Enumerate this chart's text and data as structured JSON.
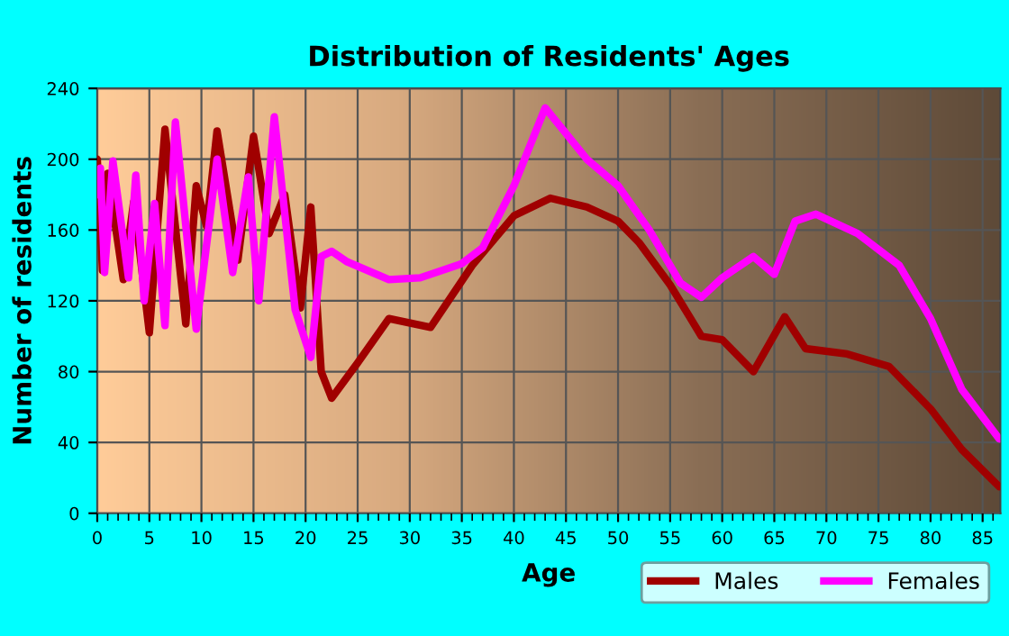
{
  "chart_data": {
    "type": "line",
    "title": "Distribution of Residents' Ages",
    "xlabel": "Age",
    "ylabel": "Number of residents",
    "xlim": [
      0,
      86.7
    ],
    "xticks": [
      0,
      5,
      10,
      15,
      20,
      25,
      30,
      35,
      40,
      45,
      50,
      55,
      60,
      65,
      70,
      75,
      80,
      85
    ],
    "ylim": [
      0,
      240
    ],
    "yticks": [
      0,
      40,
      80,
      120,
      160,
      200,
      240
    ],
    "grid": true,
    "legend": "bottom",
    "series": [
      {
        "name": "Males",
        "color": "#a00000",
        "x": [
          0,
          0.5,
          1,
          2.5,
          3.5,
          5,
          6.5,
          8.5,
          9.5,
          10.5,
          11.5,
          13.5,
          15,
          16.5,
          18,
          19.5,
          20.5,
          21.5,
          22.5,
          25,
          28,
          32,
          36,
          40,
          43.5,
          47,
          50,
          52,
          55,
          58,
          60,
          63,
          66,
          68,
          72,
          76,
          80,
          83,
          86.6
        ],
        "values": [
          200,
          137,
          192,
          132,
          176,
          102,
          217,
          107,
          185,
          162,
          216,
          143,
          213,
          158,
          180,
          116,
          173,
          80,
          65,
          85,
          110,
          105,
          140,
          168,
          178,
          173,
          165,
          153,
          129,
          100,
          98,
          80,
          111,
          93,
          90,
          83,
          59,
          36,
          15
        ]
      },
      {
        "name": "Females",
        "color": "#ff00ff",
        "x": [
          0,
          0.3,
          0.7,
          1.5,
          3,
          3.7,
          4.5,
          5.5,
          6.5,
          7.5,
          9.5,
          11.5,
          13,
          14.5,
          15.5,
          17,
          19,
          20.5,
          21.5,
          22.5,
          24,
          28,
          31,
          35,
          37,
          40,
          43,
          47,
          50,
          53,
          56,
          58,
          60,
          63,
          65,
          67,
          69,
          73,
          77,
          80,
          83,
          86.6
        ],
        "values": [
          180,
          195,
          136,
          199,
          133,
          191,
          120,
          175,
          106,
          221,
          104,
          200,
          136,
          190,
          120,
          224,
          115,
          88,
          145,
          148,
          142,
          132,
          133,
          141,
          150,
          185,
          229,
          200,
          185,
          160,
          130,
          122,
          133,
          145,
          135,
          165,
          169,
          158,
          140,
          110,
          70,
          42
        ]
      }
    ]
  }
}
